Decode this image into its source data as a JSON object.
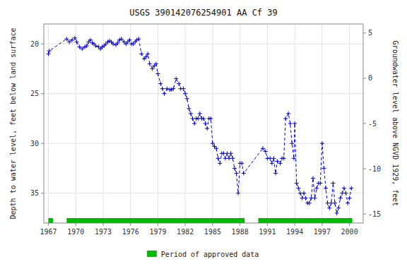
{
  "chart_data": {
    "type": "line",
    "title": "USGS 390142076254901 AA Cf  39",
    "ylabel": "Depth to water level, feet below land surface",
    "y2label": "Groundwater level above NGVD 1929, feet",
    "xlim": [
      1966.5,
      2001.5
    ],
    "xticks": [
      1967,
      1970,
      1973,
      1976,
      1979,
      1982,
      1985,
      1988,
      1991,
      1994,
      1997,
      2000
    ],
    "ylim": [
      38,
      18
    ],
    "yticks": [
      20,
      25,
      30,
      35
    ],
    "y2lim": [
      -16,
      6
    ],
    "y2ticks": [
      5,
      0,
      -5,
      -10,
      -15
    ],
    "grid": true,
    "legend": "bottom",
    "color": "#0000cc",
    "marker": "plus",
    "line_style": "dashed",
    "x": [
      1967.0,
      1967.1,
      1969.0,
      1969.3,
      1969.6,
      1969.9,
      1970.1,
      1970.4,
      1970.7,
      1971.0,
      1971.2,
      1971.4,
      1971.6,
      1971.8,
      1972.0,
      1972.2,
      1972.5,
      1972.7,
      1972.9,
      1973.1,
      1973.3,
      1973.5,
      1973.7,
      1973.9,
      1974.1,
      1974.4,
      1974.6,
      1974.8,
      1975.0,
      1975.3,
      1975.5,
      1975.7,
      1975.9,
      1976.1,
      1976.3,
      1976.5,
      1976.7,
      1976.9,
      1977.2,
      1977.5,
      1977.7,
      1977.9,
      1978.1,
      1978.4,
      1978.6,
      1978.8,
      1979.0,
      1979.3,
      1979.5,
      1979.7,
      1980.0,
      1980.3,
      1980.5,
      1980.7,
      1981.0,
      1981.3,
      1981.5,
      1981.8,
      1982.0,
      1982.2,
      1982.4,
      1982.6,
      1982.8,
      1983.0,
      1983.2,
      1983.4,
      1983.6,
      1983.8,
      1984.0,
      1984.2,
      1984.4,
      1984.6,
      1984.8,
      1985.0,
      1985.2,
      1985.4,
      1985.6,
      1985.8,
      1986.0,
      1986.2,
      1986.4,
      1986.6,
      1986.8,
      1987.0,
      1987.2,
      1987.4,
      1987.6,
      1987.8,
      1988.0,
      1988.2,
      1988.4,
      1990.5,
      1990.8,
      1991.0,
      1991.3,
      1991.5,
      1991.7,
      1991.9,
      1992.1,
      1992.4,
      1992.6,
      1992.8,
      1993.0,
      1993.3,
      1993.5,
      1993.7,
      1993.9,
      1994.0,
      1994.2,
      1994.4,
      1994.6,
      1994.8,
      1995.0,
      1995.2,
      1995.4,
      1995.6,
      1995.8,
      1996.0,
      1996.2,
      1996.4,
      1996.6,
      1996.8,
      1997.0,
      1997.2,
      1997.4,
      1997.6,
      1997.8,
      1998.0,
      1998.2,
      1998.4,
      1998.6,
      1998.8,
      1999.0,
      1999.2,
      1999.4,
      1999.6,
      1999.8,
      2000.0,
      2000.2
    ],
    "values": [
      21.0,
      20.7,
      19.5,
      19.8,
      19.6,
      19.4,
      19.8,
      20.3,
      20.5,
      20.3,
      20.2,
      19.8,
      19.6,
      19.9,
      20.0,
      20.2,
      20.3,
      20.5,
      20.3,
      20.2,
      20.0,
      19.8,
      19.7,
      19.8,
      20.0,
      20.1,
      19.9,
      19.6,
      19.5,
      19.8,
      20.0,
      19.8,
      19.6,
      20.0,
      20.0,
      19.8,
      19.6,
      19.5,
      21.0,
      21.5,
      21.3,
      21.0,
      22.0,
      22.5,
      22.2,
      22.0,
      23.0,
      24.0,
      24.5,
      25.0,
      24.5,
      24.6,
      24.6,
      24.5,
      23.5,
      24.0,
      24.5,
      24.5,
      25.0,
      25.5,
      26.5,
      27.0,
      27.5,
      28.0,
      27.5,
      27.5,
      27.0,
      27.5,
      27.5,
      28.0,
      28.5,
      27.5,
      27.5,
      30.0,
      30.3,
      30.5,
      31.5,
      32.0,
      31.0,
      31.0,
      31.5,
      31.0,
      31.5,
      31.0,
      31.5,
      32.5,
      33.0,
      35.0,
      32.0,
      32.0,
      33.0,
      30.5,
      30.8,
      31.5,
      31.5,
      32.0,
      31.5,
      33.0,
      31.8,
      32.0,
      31.5,
      31.5,
      27.5,
      27.0,
      28.0,
      30.0,
      31.5,
      28.0,
      34.0,
      34.5,
      35.0,
      35.5,
      35.0,
      35.5,
      36.0,
      36.0,
      35.5,
      33.5,
      35.5,
      34.5,
      34.0,
      34.0,
      30.0,
      32.5,
      34.5,
      36.0,
      36.5,
      36.0,
      34.0,
      36.0,
      37.0,
      36.5,
      35.5,
      35.0,
      34.5,
      35.0,
      36.0,
      35.5,
      34.5
    ],
    "periods": {
      "name": "Period of approved data",
      "color": "#00bb00",
      "ranges": [
        [
          1967.0,
          1967.5
        ],
        [
          1969.0,
          1988.5
        ],
        [
          1990.0,
          2000.3
        ]
      ]
    }
  }
}
